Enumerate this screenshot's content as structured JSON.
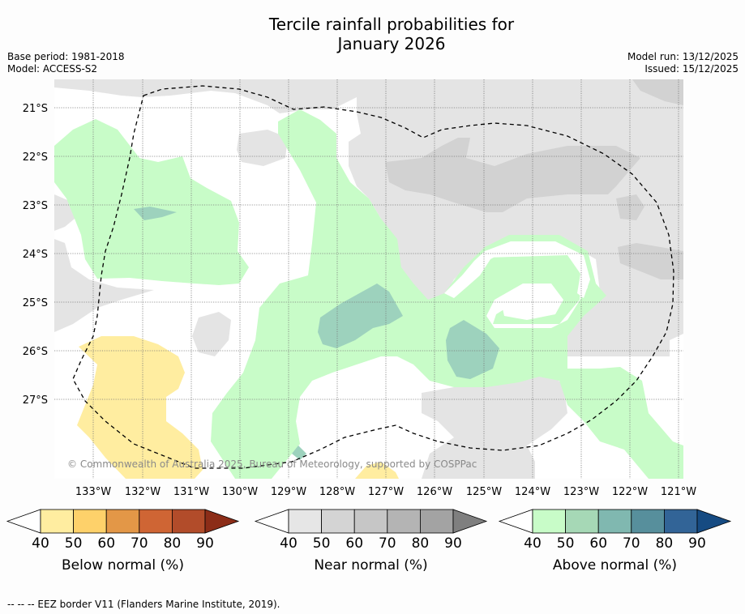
{
  "title_line1": "Tercile rainfall probabilities for",
  "title_line2": "January 2026",
  "base_period": "Base period: 1981-2018",
  "model": "Model: ACCESS-S2",
  "model_run": "Model run: 13/12/2025",
  "issued": "Issued: 15/12/2025",
  "attribution": "© Commonwealth of Australia 2025, Bureau of Meteorology, supported by COSPPac",
  "footnote": "--  --  -- EEZ border V11 (Flanders Marine Institute, 2019).",
  "map": {
    "lon_range": [
      -133.8,
      -120.9
    ],
    "lat_range": [
      -28.2,
      -20.6
    ],
    "lat_labels": [
      "21°S",
      "22°S",
      "23°S",
      "24°S",
      "25°S",
      "26°S",
      "27°S"
    ],
    "lon_labels": [
      "133°W",
      "132°W",
      "131°W",
      "130°W",
      "129°W",
      "128°W",
      "127°W",
      "126°W",
      "125°W",
      "124°W",
      "123°W",
      "122°W",
      "121°W"
    ]
  },
  "colorbars": [
    {
      "label": "Below normal (%)",
      "ticks": [
        "40",
        "50",
        "60",
        "70",
        "80",
        "90"
      ],
      "colors": [
        "#ffffff",
        "#ffeda0",
        "#fed16a",
        "#e39747",
        "#cf6534",
        "#b24c2a",
        "#8c2d18"
      ]
    },
    {
      "label": "Near normal (%)",
      "ticks": [
        "40",
        "50",
        "60",
        "70",
        "80",
        "90"
      ],
      "colors": [
        "#ffffff",
        "#e6e6e6",
        "#d4d4d4",
        "#c6c6c6",
        "#b4b4b4",
        "#a3a3a3",
        "#7f7f7f"
      ]
    },
    {
      "label": "Above normal (%)",
      "ticks": [
        "40",
        "50",
        "60",
        "70",
        "80",
        "90"
      ],
      "colors": [
        "#ffffff",
        "#c8fcc8",
        "#a6d8b6",
        "#80b8b0",
        "#578f9c",
        "#326497",
        "#164b82"
      ]
    }
  ],
  "category_colors": {
    "below": "#ffeda0",
    "near": "#e4e4e4",
    "above_50": "#c8fcc8",
    "above_60": "#9dd2bd"
  }
}
